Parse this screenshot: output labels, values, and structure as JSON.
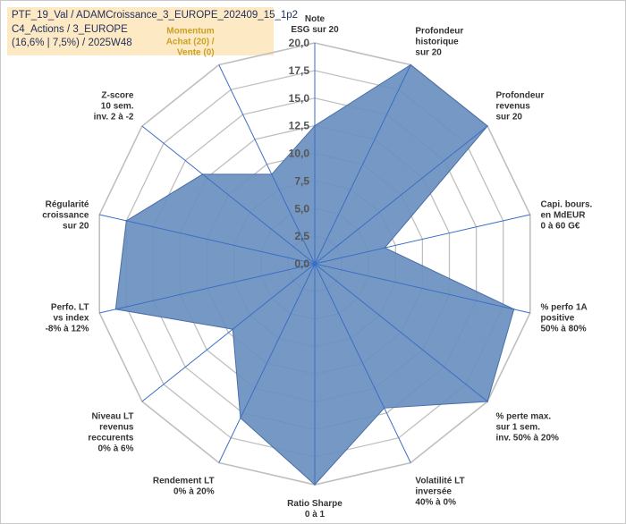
{
  "title_box": {
    "line1": "PTF_19_Val / ADAMCroissance_3_EUROPE_202409_15_1p2",
    "line2": "C4_Actions / 3_EUROPE",
    "line3": "(16,6% | 7,5%) / 2025W48"
  },
  "colors": {
    "fill": "#6a8fbf",
    "stroke": "#4a6fa5",
    "axis": "#3a6fc4",
    "grid": "#bfbfbf",
    "title_bg": "#fde9c4",
    "highlight_label": "#c9a227"
  },
  "chart_data": {
    "type": "radar",
    "rmin": 0,
    "rmax": 20,
    "tick_step": 2.5,
    "tick_labels": [
      "0,0",
      "2,5",
      "5,0",
      "7,5",
      "10,0",
      "12,5",
      "15,0",
      "17,5",
      "20,0"
    ],
    "axes": [
      {
        "label": [
          "Note",
          "ESG sur 20"
        ],
        "value": 12.5,
        "highlight": false
      },
      {
        "label": [
          "Profondeur",
          "historique",
          "sur 20"
        ],
        "value": 20,
        "highlight": false
      },
      {
        "label": [
          "Profondeur",
          "revenus",
          "sur 20"
        ],
        "value": 20,
        "highlight": false
      },
      {
        "label": [
          "Capi. bours.",
          "en MdEUR",
          "0 à 60 G€"
        ],
        "value": 6.5,
        "highlight": false
      },
      {
        "label": [
          "% perfo 1A",
          "positive",
          "50% à 80%"
        ],
        "value": 18.5,
        "highlight": false
      },
      {
        "label": [
          "% perte max.",
          "sur 1 sem.",
          "inv. 50% à 20%"
        ],
        "value": 20,
        "highlight": false
      },
      {
        "label": [
          "Volatilité LT",
          "inversée",
          "40% à 0%"
        ],
        "value": 14.5,
        "highlight": false
      },
      {
        "label": [
          "Ratio Sharpe",
          "0 à 1"
        ],
        "value": 20,
        "highlight": false
      },
      {
        "label": [
          "Rendement LT",
          "0% à 20%"
        ],
        "value": 15.5,
        "highlight": false
      },
      {
        "label": [
          "Niveau LT",
          "revenus",
          "reccurents",
          "0% à 6%"
        ],
        "value": 9.5,
        "highlight": false
      },
      {
        "label": [
          "Perfo. LT",
          "vs index",
          "-8% à 12%"
        ],
        "value": 18.5,
        "highlight": false
      },
      {
        "label": [
          "Régularité",
          "croissance",
          "sur 20"
        ],
        "value": 17.5,
        "highlight": false
      },
      {
        "label": [
          "Z-score",
          "10 sem.",
          "inv. 2 à -2"
        ],
        "value": 13,
        "highlight": false
      },
      {
        "label": [
          "Momentum",
          "Achat (20) /",
          "Vente (0)"
        ],
        "value": 9,
        "highlight": true
      }
    ]
  }
}
